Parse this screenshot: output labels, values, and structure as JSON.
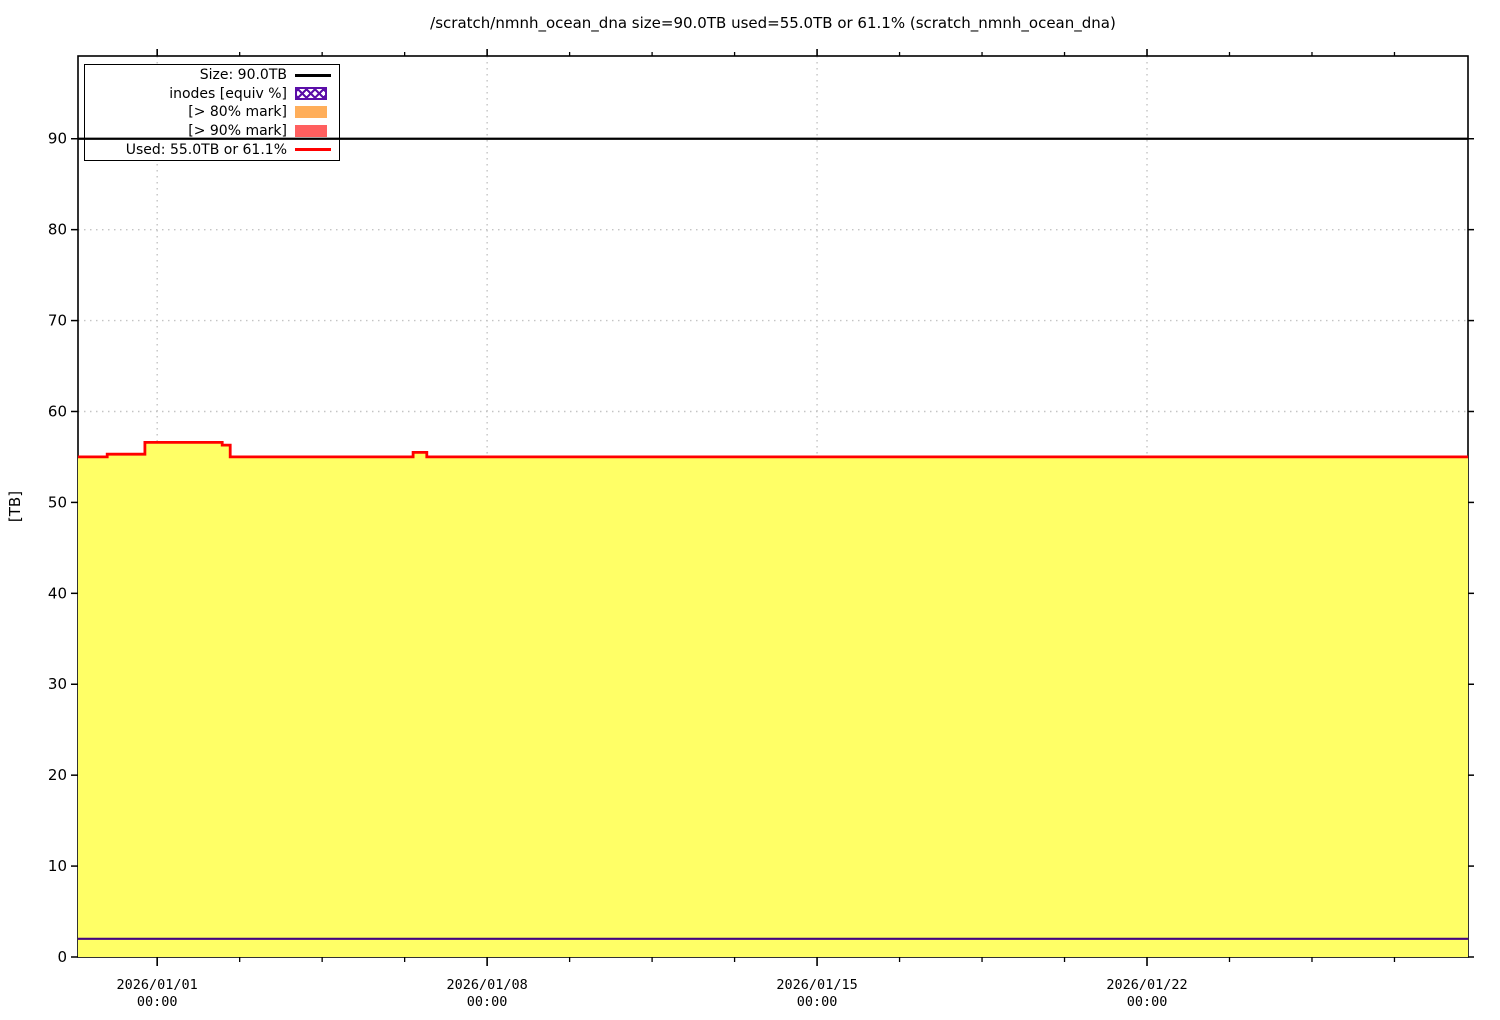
{
  "title": "/scratch/nmnh_ocean_dna size=90.0TB used=55.0TB or 61.1% (scratch_nmnh_ocean_dna)",
  "legend": {
    "items": [
      {
        "label": "Size: 90.0TB",
        "type": "line",
        "color": "#000000"
      },
      {
        "label": "inodes [equiv %]",
        "type": "hatch",
        "color": "#5b0ea8"
      },
      {
        "label": "[> 80% mark]",
        "type": "box",
        "color": "#ffae5a"
      },
      {
        "label": "[> 90% mark]",
        "type": "box",
        "color": "#ff5f5f"
      },
      {
        "label": "Used: 55.0TB or 61.1%",
        "type": "line",
        "color": "#ff0000"
      }
    ]
  },
  "chart_data": {
    "type": "area",
    "title": "/scratch/nmnh_ocean_dna size=90.0TB used=55.0TB or 61.1% (scratch_nmnh_ocean_dna)",
    "xlabel": "",
    "ylabel": "[TB]",
    "ylim": [
      0,
      99.1
    ],
    "x_range_days": [
      -1.68,
      27.81
    ],
    "grid": true,
    "legend_position": "top-left",
    "gridline_color": "#c4c4c4",
    "y_ticks": [
      0,
      10,
      20,
      30,
      40,
      50,
      60,
      70,
      80,
      90
    ],
    "x_major_ticks": [
      {
        "day": 0,
        "date": "2026/01/01",
        "time": "00:00"
      },
      {
        "day": 7,
        "date": "2026/01/08",
        "time": "00:00"
      },
      {
        "day": 14,
        "date": "2026/01/15",
        "time": "00:00"
      },
      {
        "day": 21,
        "date": "2026/01/22",
        "time": "00:00"
      }
    ],
    "x_minor_step_days": 1.75,
    "series": [
      {
        "name": "Size: 90.0TB",
        "type": "hline",
        "value_tb": 90,
        "color": "#000000"
      },
      {
        "name": "Used: 55.0TB or 61.1%",
        "type": "step-area",
        "line_color": "#ff0000",
        "fill_color": "#ffff66",
        "used_tb": 55.0,
        "used_pct": 61.1,
        "size_tb": 90.0,
        "points_day_tb": [
          [
            -1.68,
            55.0
          ],
          [
            -1.06,
            55.0
          ],
          [
            -1.06,
            55.3
          ],
          [
            -0.26,
            55.3
          ],
          [
            -0.26,
            56.6
          ],
          [
            1.38,
            56.6
          ],
          [
            1.38,
            56.3
          ],
          [
            1.55,
            56.3
          ],
          [
            1.55,
            55.0
          ],
          [
            5.43,
            55.0
          ],
          [
            5.43,
            55.5
          ],
          [
            5.72,
            55.5
          ],
          [
            5.72,
            55.0
          ],
          [
            27.81,
            55.0
          ]
        ]
      },
      {
        "name": "inodes [equiv %]",
        "type": "line",
        "color": "#45067f",
        "points_day_tb": [
          [
            -1.68,
            2.0
          ],
          [
            27.81,
            2.0
          ]
        ]
      }
    ]
  }
}
